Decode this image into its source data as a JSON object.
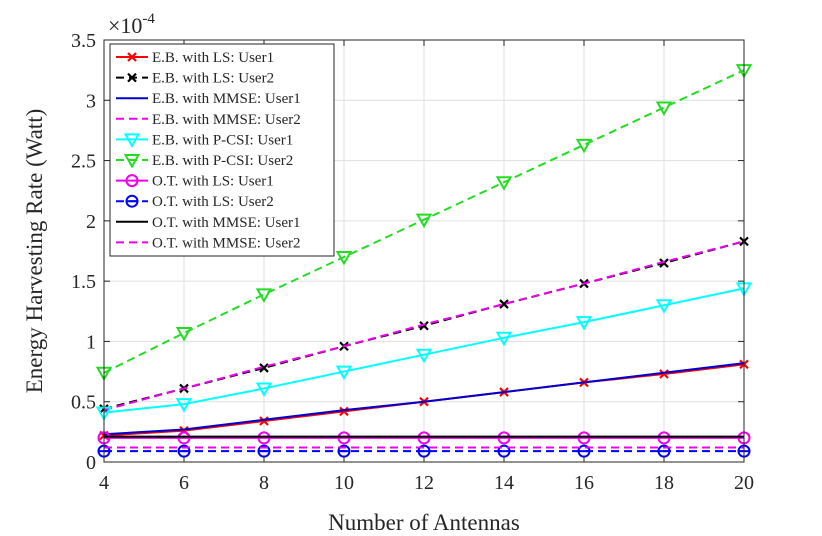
{
  "chart_data": {
    "type": "line",
    "title": "",
    "xlabel": "Number of Antennas",
    "ylabel": "Energy Harvesting Rate (Watt)",
    "y_multiplier": "×10^-4",
    "y_multiplier_base": "×10",
    "y_multiplier_exp": "-4",
    "xlim": [
      4,
      20
    ],
    "ylim": [
      0,
      3.5
    ],
    "xticks": [
      4,
      6,
      8,
      10,
      12,
      14,
      16,
      18,
      20
    ],
    "yticks": [
      0,
      0.5,
      1,
      1.5,
      2,
      2.5,
      3,
      3.5
    ],
    "ytick_labels": [
      "0",
      "0.5",
      "1",
      "1.5",
      "2",
      "2.5",
      "3",
      "3.5"
    ],
    "grid": true,
    "legend_position": "top-left",
    "x": [
      4,
      6,
      8,
      10,
      12,
      14,
      16,
      18,
      20
    ],
    "series": [
      {
        "name": "E.B. with LS: User1",
        "color": "#ff0000",
        "dash": "solid",
        "marker": "x",
        "values": [
          0.22,
          0.26,
          0.34,
          0.42,
          0.5,
          0.58,
          0.66,
          0.73,
          0.81
        ]
      },
      {
        "name": "E.B. with LS: User2",
        "color": "#000000",
        "dash": "dashed",
        "marker": "x",
        "values": [
          0.44,
          0.61,
          0.78,
          0.96,
          1.13,
          1.31,
          1.48,
          1.65,
          1.83
        ]
      },
      {
        "name": "E.B. with MMSE: User1",
        "color": "#0000cd",
        "dash": "solid",
        "marker": "none",
        "values": [
          0.23,
          0.27,
          0.35,
          0.43,
          0.5,
          0.58,
          0.66,
          0.74,
          0.82
        ]
      },
      {
        "name": "E.B. with MMSE: User2",
        "color": "#ee00ee",
        "dash": "dashed",
        "marker": "none",
        "values": [
          0.43,
          0.61,
          0.79,
          0.96,
          1.14,
          1.31,
          1.48,
          1.66,
          1.83
        ]
      },
      {
        "name": "E.B. with P-CSI: User1",
        "color": "#00ffff",
        "dash": "solid",
        "marker": "triangle-down",
        "values": [
          0.41,
          0.48,
          0.61,
          0.75,
          0.89,
          1.03,
          1.16,
          1.3,
          1.44
        ]
      },
      {
        "name": "E.B. with P-CSI: User2",
        "color": "#22dd22",
        "dash": "dashed",
        "marker": "triangle-down",
        "values": [
          0.74,
          1.07,
          1.39,
          1.7,
          2.01,
          2.32,
          2.63,
          2.94,
          3.25
        ]
      },
      {
        "name": "O.T. with LS: User1",
        "color": "#ee00ee",
        "dash": "solid",
        "marker": "circle",
        "values": [
          0.2,
          0.2,
          0.2,
          0.2,
          0.2,
          0.2,
          0.2,
          0.2,
          0.2
        ]
      },
      {
        "name": "O.T. with LS: User2",
        "color": "#0000ff",
        "dash": "dashed",
        "marker": "circle-bar",
        "values": [
          0.09,
          0.09,
          0.09,
          0.09,
          0.09,
          0.09,
          0.09,
          0.09,
          0.09
        ]
      },
      {
        "name": "O.T. with MMSE: User1",
        "color": "#000000",
        "dash": "solid",
        "marker": "none",
        "values": [
          0.21,
          0.21,
          0.21,
          0.21,
          0.21,
          0.21,
          0.21,
          0.21,
          0.21
        ]
      },
      {
        "name": "O.T. with MMSE: User2",
        "color": "#ee00ee",
        "dash": "dashed",
        "marker": "none",
        "values": [
          0.12,
          0.12,
          0.12,
          0.12,
          0.12,
          0.12,
          0.12,
          0.12,
          0.12
        ]
      }
    ]
  }
}
